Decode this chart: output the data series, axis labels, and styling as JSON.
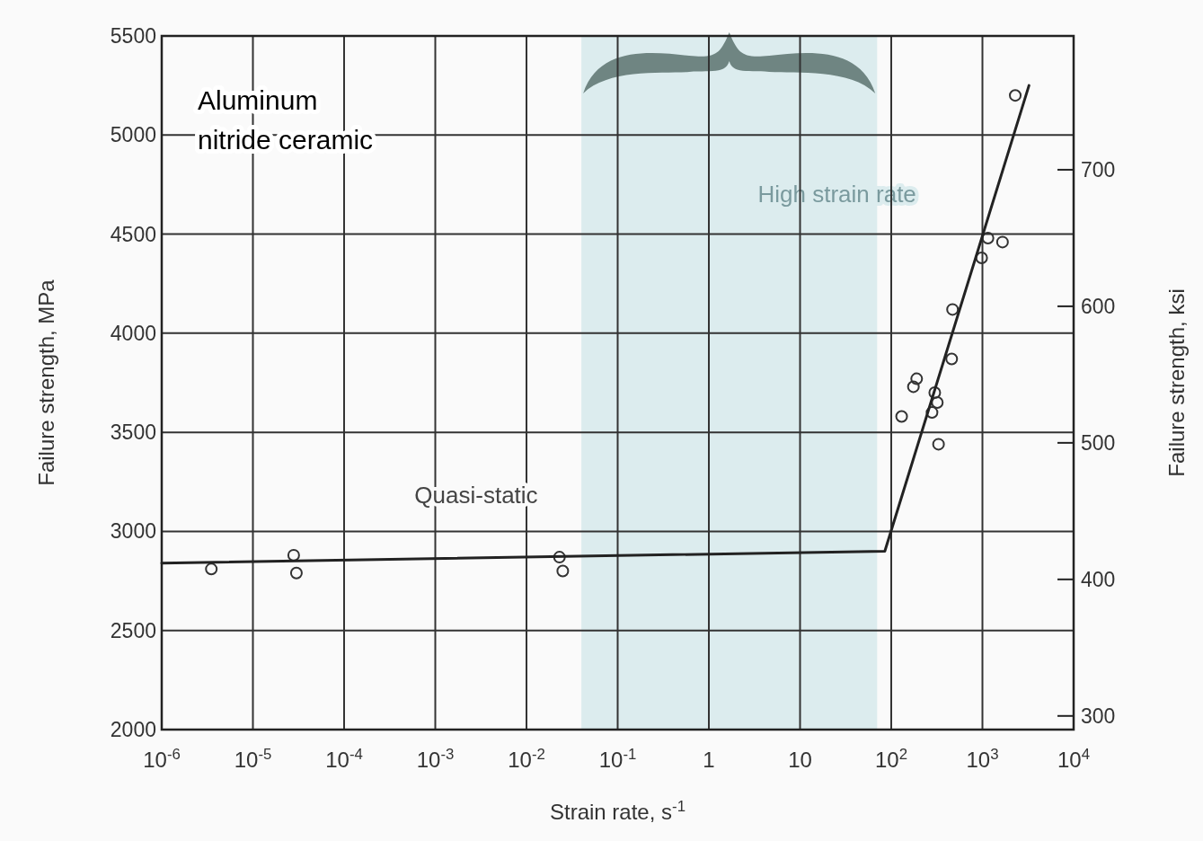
{
  "chart_data": {
    "type": "scatter",
    "xlabel": "Strain rate, s$^{-1}$",
    "ylabel": "Failure strength, MPa",
    "y2label": "Failure strength, ksi",
    "annotations": [
      "Aluminum nitride ceramic",
      "Quasi-static"
    ],
    "log": "x",
    "grid": true,
    "xlim": [
      1e-06,
      10000
    ],
    "ylim": [
      2000,
      5500
    ],
    "y2lim": [
      290,
      798
    ],
    "xticks": [
      {
        "value": 1e-06,
        "label": "10$^{-6}$"
      },
      {
        "value": 1e-05,
        "label": "10$^{-5}$"
      },
      {
        "value": 0.0001,
        "label": "10$^{-4}$"
      },
      {
        "value": 0.001,
        "label": "10$^{-3}$"
      },
      {
        "value": 0.01,
        "label": "10$^{-2}$"
      },
      {
        "value": 0.1,
        "label": "10$^{-1}$"
      },
      1,
      10,
      {
        "value": 100,
        "label": "10$^{2}$"
      },
      {
        "value": 1000,
        "label": "10$^{3}$"
      },
      {
        "value": 10000,
        "label": "10$^{4}$"
      }
    ],
    "yticks": [
      2000,
      2500,
      3000,
      3500,
      4000,
      4500,
      5000,
      5500
    ],
    "y2ticks": [
      300,
      400,
      500,
      600,
      700
    ],
    "bands": [
      {
        "axis": "x",
        "from": 0.04,
        "to": 70,
        "label": "High strain rate",
        "color": "#dcecee"
      }
    ],
    "series": [
      {
        "marker": "circle",
        "color": "#333333",
        "x": [
          3.5e-06,
          2.8e-05,
          3e-05,
          0.023,
          0.025,
          130,
          175,
          190,
          280,
          300,
          320,
          330,
          460,
          470,
          980,
          1150,
          1660,
          2290
        ],
        "values": [
          2810,
          2880,
          2790,
          2870,
          2800,
          3580,
          3730,
          3770,
          3600,
          3700,
          3650,
          3440,
          3870,
          4120,
          4380,
          4480,
          4460,
          5200
        ]
      },
      {
        "type": "line",
        "color": "#222222",
        "x": [
          1e-06,
          85,
          3240
        ],
        "values": [
          2840,
          2900,
          5250
        ]
      }
    ]
  }
}
